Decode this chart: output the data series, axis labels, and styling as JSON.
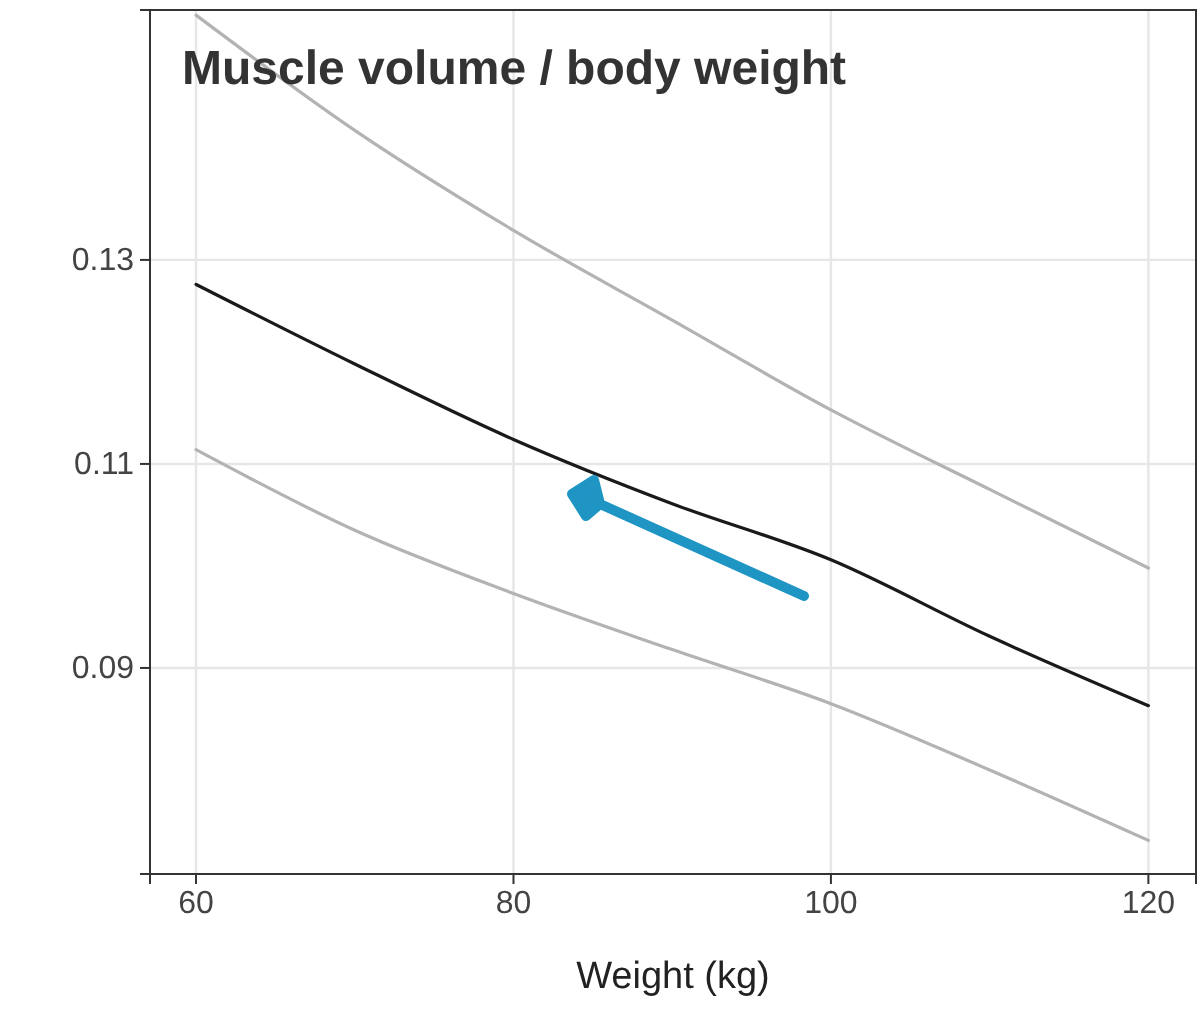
{
  "chart_data": {
    "type": "line",
    "title": "Muscle volume / body weight",
    "xlabel": "Weight (kg)",
    "xlim": [
      57.1,
      123
    ],
    "ylim": [
      0.0698,
      0.1545
    ],
    "xticks": [
      60,
      80,
      100,
      120
    ],
    "yticks": [
      0.09,
      0.11,
      0.13
    ],
    "grid": true,
    "line_style": "solid",
    "marker": "none",
    "series": [
      {
        "color": "#b3b3b3",
        "x": [
          60,
          70,
          80,
          90,
          100,
          110,
          120
        ],
        "values": [
          0.154,
          0.1427,
          0.1329,
          0.1241,
          0.1153,
          0.1075,
          0.0998
        ]
      },
      {
        "color": "#b3b3b3",
        "x": [
          60,
          70,
          80,
          90,
          100,
          110,
          120
        ],
        "values": [
          0.1114,
          0.1035,
          0.0973,
          0.0918,
          0.0865,
          0.08,
          0.0731
        ]
      },
      {
        "color": "#1a1a1a",
        "x": [
          60,
          70,
          80,
          90,
          100,
          110,
          120
        ],
        "values": [
          0.1276,
          0.1198,
          0.1124,
          0.1061,
          0.1006,
          0.0931,
          0.0863
        ]
      }
    ]
  }
}
